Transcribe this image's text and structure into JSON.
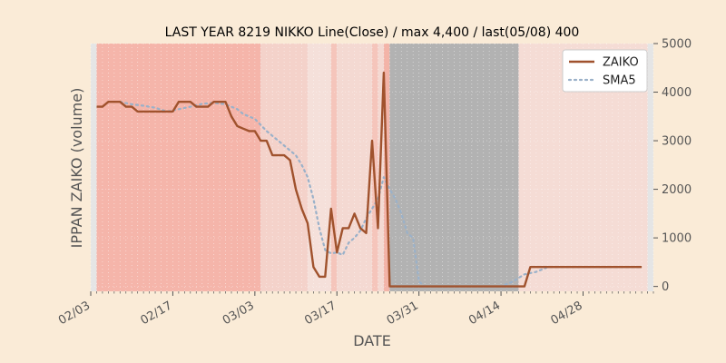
{
  "chart_data": {
    "type": "line",
    "title": "LAST YEAR 8219 NIKKO Line(Close) / max 4,400 / last(05/08) 400",
    "xlabel": "DATE",
    "ylabel": "IPPAN ZAIKO (volume)",
    "y_axis_side": "right",
    "ylim": [
      -100,
      5000
    ],
    "xlim": [
      "02-03",
      "05-10"
    ],
    "y_ticks": [
      0,
      1000,
      2000,
      3000,
      4000,
      5000
    ],
    "x_ticks": [
      "02/03",
      "02/17",
      "03/03",
      "03/17",
      "03/31",
      "04/14",
      "04/28"
    ],
    "x_tick_dates": [
      "02-03",
      "02-17",
      "03-03",
      "03-17",
      "03-31",
      "04-14",
      "04-28"
    ],
    "legend_position": "top-right",
    "background_color": "#faebd7",
    "plot_background": "#e5e5e5",
    "grid": true,
    "series": [
      {
        "name": "ZAIKO",
        "color": "#a0522d",
        "style": "solid",
        "x": [
          "02-04",
          "02-05",
          "02-06",
          "02-07",
          "02-08",
          "02-09",
          "02-10",
          "02-11",
          "02-12",
          "02-13",
          "02-14",
          "02-15",
          "02-16",
          "02-17",
          "02-18",
          "02-19",
          "02-20",
          "02-21",
          "02-22",
          "02-23",
          "02-24",
          "02-25",
          "02-26",
          "02-27",
          "02-28",
          "03-01",
          "03-02",
          "03-03",
          "03-04",
          "03-05",
          "03-06",
          "03-07",
          "03-08",
          "03-09",
          "03-10",
          "03-11",
          "03-12",
          "03-13",
          "03-14",
          "03-15",
          "03-16",
          "03-17",
          "03-18",
          "03-19",
          "03-20",
          "03-21",
          "03-22",
          "03-23",
          "03-24",
          "03-25",
          "03-26",
          "03-27",
          "03-28",
          "03-29",
          "03-30",
          "03-31",
          "04-01",
          "04-02",
          "04-03",
          "04-04",
          "04-05",
          "04-06",
          "04-07",
          "04-08",
          "04-09",
          "04-10",
          "04-11",
          "04-12",
          "04-13",
          "04-14",
          "04-15",
          "04-16",
          "04-17",
          "04-18",
          "04-19",
          "04-20",
          "04-21",
          "04-22",
          "04-23",
          "04-24",
          "04-25",
          "04-26",
          "04-27",
          "04-28",
          "04-29",
          "04-30",
          "05-01",
          "05-02",
          "05-03",
          "05-04",
          "05-05",
          "05-06",
          "05-07",
          "05-08"
        ],
        "values": [
          3700,
          3700,
          3800,
          3800,
          3800,
          3700,
          3700,
          3600,
          3600,
          3600,
          3600,
          3600,
          3600,
          3600,
          3800,
          3800,
          3800,
          3700,
          3700,
          3700,
          3800,
          3800,
          3800,
          3500,
          3300,
          3250,
          3200,
          3200,
          3000,
          3000,
          2700,
          2700,
          2700,
          2600,
          2000,
          1600,
          1300,
          400,
          200,
          200,
          1600,
          700,
          1200,
          1200,
          1500,
          1200,
          1100,
          3000,
          1200,
          4400,
          0,
          0,
          0,
          0,
          0,
          0,
          0,
          0,
          0,
          0,
          0,
          0,
          0,
          0,
          0,
          0,
          0,
          0,
          0,
          0,
          0,
          0,
          0,
          0,
          400,
          400,
          400,
          400,
          400,
          400,
          400,
          400,
          400,
          400,
          400,
          400,
          400,
          400,
          400,
          400,
          400,
          400,
          400,
          400
        ]
      },
      {
        "name": "SMA5",
        "color": "#9ab1c9",
        "style": "dotted",
        "x": [
          "02-08",
          "02-10",
          "02-12",
          "02-14",
          "02-16",
          "02-18",
          "02-20",
          "02-22",
          "02-24",
          "02-26",
          "02-28",
          "03-01",
          "03-03",
          "03-05",
          "03-07",
          "03-09",
          "03-10",
          "03-11",
          "03-12",
          "03-13",
          "03-14",
          "03-15",
          "03-16",
          "03-17",
          "03-18",
          "03-19",
          "03-20",
          "03-21",
          "03-22",
          "03-23",
          "03-24",
          "03-25",
          "03-26",
          "03-27",
          "03-28",
          "03-29",
          "03-30",
          "03-31",
          "04-01",
          "04-14",
          "04-16",
          "04-18",
          "04-20",
          "04-22",
          "04-30",
          "05-08"
        ],
        "values": [
          3800,
          3750,
          3720,
          3680,
          3600,
          3650,
          3700,
          3760,
          3780,
          3750,
          3650,
          3550,
          3450,
          3200,
          3000,
          2800,
          2700,
          2500,
          2250,
          1800,
          1200,
          750,
          680,
          700,
          650,
          900,
          1000,
          1150,
          1400,
          1600,
          1800,
          2250,
          2000,
          1800,
          1500,
          1100,
          1000,
          100,
          0,
          0,
          100,
          250,
          300,
          400,
          400,
          400
        ]
      }
    ],
    "background_bands": [
      {
        "start": "02-04",
        "end": "03-04",
        "color": "#f5b5aa"
      },
      {
        "start": "03-04",
        "end": "03-12",
        "color": "#f4d2ca"
      },
      {
        "start": "03-12",
        "end": "03-16",
        "color": "#f5e0da"
      },
      {
        "start": "03-16",
        "end": "03-17",
        "color": "#f5c5bb"
      },
      {
        "start": "03-17",
        "end": "03-23",
        "color": "#f4d9d2"
      },
      {
        "start": "03-23",
        "end": "03-24",
        "color": "#f5c5bb"
      },
      {
        "start": "03-24",
        "end": "03-25",
        "color": "#f4d9d2"
      },
      {
        "start": "03-25",
        "end": "03-26",
        "color": "#f3b4a8"
      },
      {
        "start": "03-26",
        "end": "04-17",
        "color": "#b2b2b2"
      },
      {
        "start": "04-17",
        "end": "05-09",
        "color": "#f5dcd5"
      }
    ]
  }
}
